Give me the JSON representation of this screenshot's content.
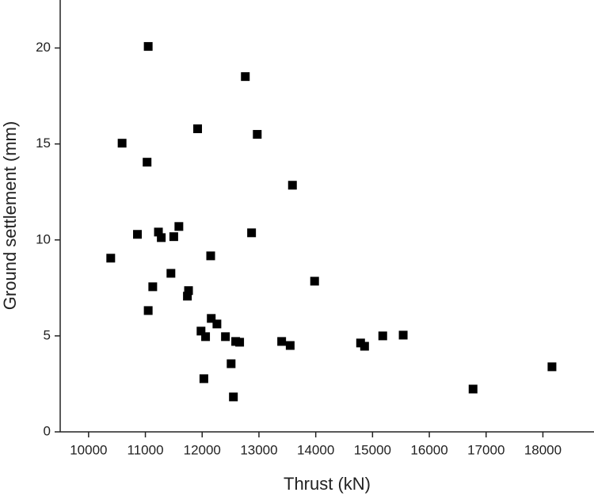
{
  "chart_data": {
    "type": "scatter",
    "x_label": "Thrust (kN)",
    "y_label": "Ground settlement (mm)",
    "xlim": [
      9500,
      18900
    ],
    "ylim": [
      0,
      22.5
    ],
    "xticks": [
      10000,
      11000,
      12000,
      13000,
      14000,
      15000,
      16000,
      17000,
      18000
    ],
    "yticks": [
      0,
      5,
      10,
      15,
      20
    ],
    "color": "#000000",
    "x": [
      11050,
      12760,
      10590,
      11920,
      12970,
      11030,
      13590,
      10390,
      10860,
      11230,
      11280,
      11500,
      11590,
      12870,
      12150,
      11450,
      11130,
      11760,
      11740,
      11050,
      13980,
      11980,
      12160,
      12260,
      12060,
      12410,
      12590,
      12660,
      13400,
      13550,
      14790,
      14860,
      15180,
      15540,
      12510,
      12030,
      12550,
      16770,
      18160
    ],
    "values": [
      20.08,
      18.51,
      15.04,
      15.79,
      15.5,
      14.05,
      12.85,
      9.05,
      10.29,
      10.41,
      10.12,
      10.17,
      10.7,
      10.37,
      9.17,
      8.26,
      7.56,
      7.36,
      7.07,
      6.32,
      7.85,
      5.25,
      5.91,
      5.62,
      4.96,
      4.96,
      4.71,
      4.67,
      4.71,
      4.5,
      4.63,
      4.46,
      5.0,
      5.04,
      3.55,
      2.77,
      1.82,
      2.23,
      3.39
    ]
  }
}
